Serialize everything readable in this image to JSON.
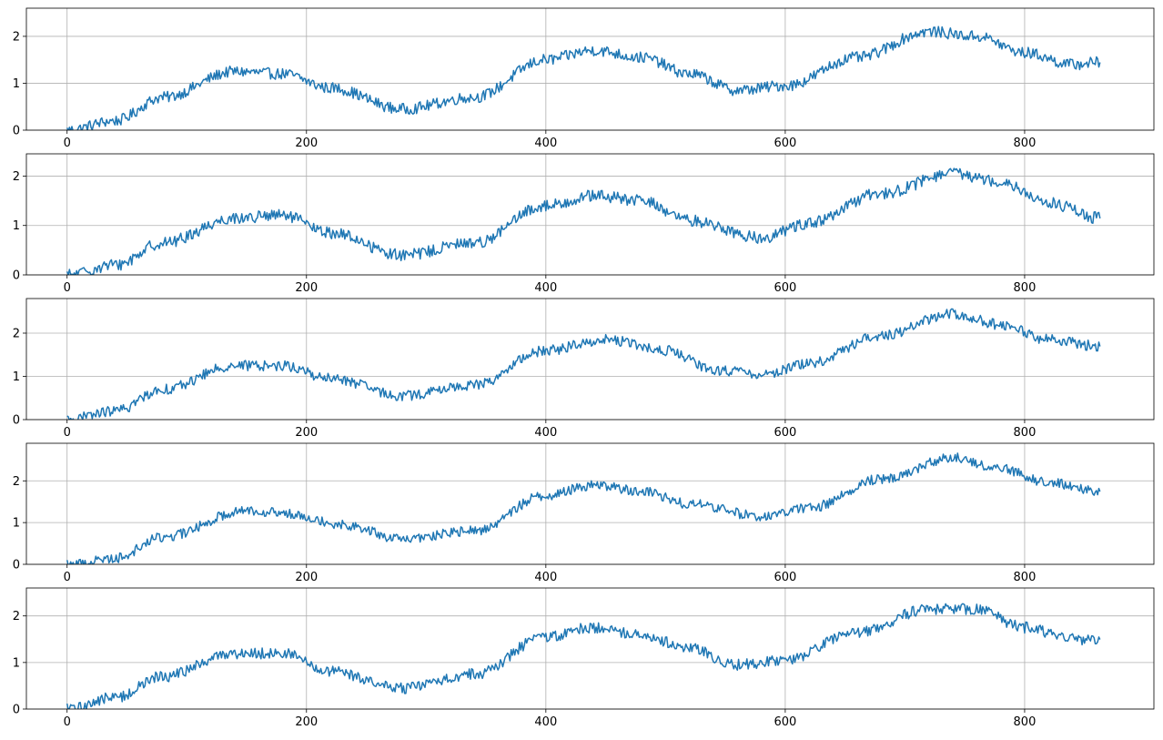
{
  "chart_data": [
    {
      "type": "line",
      "xlim": [
        -34,
        908
      ],
      "ylim": [
        0,
        2.6
      ],
      "xticks": [
        0,
        200,
        400,
        600,
        800
      ],
      "xtick_labels": [
        "0",
        "200",
        "400",
        "600",
        "800"
      ],
      "yticks": [
        0,
        1,
        2
      ],
      "ytick_labels": [
        "0",
        "1",
        "2"
      ],
      "grid": true,
      "line_color": "#1f77b4",
      "x_range": [
        0,
        863
      ],
      "trend_x": [
        0,
        40,
        80,
        140,
        180,
        220,
        280,
        340,
        400,
        440,
        480,
        520,
        560,
        600,
        660,
        720,
        760,
        800,
        840,
        863
      ],
      "trend_y": [
        0.0,
        0.2,
        0.7,
        1.25,
        1.2,
        0.9,
        0.45,
        0.7,
        1.5,
        1.7,
        1.55,
        1.2,
        0.85,
        0.95,
        1.55,
        2.1,
        2.0,
        1.65,
        1.4,
        1.45
      ],
      "noise_amplitude": 0.12
    },
    {
      "type": "line",
      "xlim": [
        -34,
        908
      ],
      "ylim": [
        0,
        2.45
      ],
      "xticks": [
        0,
        200,
        400,
        600,
        800
      ],
      "xtick_labels": [
        "0",
        "200",
        "400",
        "600",
        "800"
      ],
      "yticks": [
        0,
        1,
        2
      ],
      "ytick_labels": [
        "0",
        "1",
        "2"
      ],
      "grid": true,
      "line_color": "#1f77b4",
      "x_range": [
        0,
        863
      ],
      "trend_x": [
        0,
        40,
        80,
        140,
        180,
        220,
        280,
        340,
        400,
        440,
        480,
        520,
        580,
        620,
        680,
        740,
        780,
        820,
        863
      ],
      "trend_y": [
        0.0,
        0.2,
        0.65,
        1.15,
        1.2,
        0.85,
        0.4,
        0.65,
        1.4,
        1.6,
        1.5,
        1.1,
        0.75,
        1.05,
        1.65,
        2.05,
        1.9,
        1.45,
        1.15
      ],
      "noise_amplitude": 0.12
    },
    {
      "type": "line",
      "xlim": [
        -34,
        908
      ],
      "ylim": [
        0,
        2.8
      ],
      "xticks": [
        0,
        200,
        400,
        600,
        800
      ],
      "xtick_labels": [
        "0",
        "200",
        "400",
        "600",
        "800"
      ],
      "yticks": [
        0,
        1,
        2
      ],
      "ytick_labels": [
        "0",
        "1",
        "2"
      ],
      "grid": true,
      "line_color": "#1f77b4",
      "x_range": [
        0,
        863
      ],
      "trend_x": [
        0,
        40,
        80,
        140,
        180,
        220,
        280,
        340,
        400,
        450,
        500,
        540,
        580,
        620,
        680,
        740,
        780,
        820,
        863
      ],
      "trend_y": [
        0.0,
        0.2,
        0.7,
        1.25,
        1.25,
        0.95,
        0.55,
        0.8,
        1.6,
        1.85,
        1.6,
        1.15,
        1.05,
        1.3,
        1.95,
        2.45,
        2.2,
        1.85,
        1.7
      ],
      "noise_amplitude": 0.12
    },
    {
      "type": "line",
      "xlim": [
        -34,
        908
      ],
      "ylim": [
        0,
        2.9
      ],
      "xticks": [
        0,
        200,
        400,
        600,
        800
      ],
      "xtick_labels": [
        "0",
        "200",
        "400",
        "600",
        "800"
      ],
      "yticks": [
        0,
        1,
        2
      ],
      "ytick_labels": [
        "0",
        "1",
        "2"
      ],
      "grid": true,
      "line_color": "#1f77b4",
      "x_range": [
        0,
        863
      ],
      "trend_x": [
        0,
        40,
        80,
        150,
        190,
        230,
        280,
        340,
        400,
        440,
        480,
        520,
        580,
        620,
        680,
        740,
        780,
        820,
        863
      ],
      "trend_y": [
        0.0,
        0.15,
        0.65,
        1.3,
        1.2,
        0.95,
        0.6,
        0.8,
        1.65,
        1.9,
        1.75,
        1.45,
        1.15,
        1.35,
        2.05,
        2.55,
        2.3,
        1.95,
        1.75
      ],
      "noise_amplitude": 0.12
    },
    {
      "type": "line",
      "xlim": [
        -34,
        908
      ],
      "ylim": [
        0,
        2.6
      ],
      "xticks": [
        0,
        200,
        400,
        600,
        800
      ],
      "xtick_labels": [
        "0",
        "200",
        "400",
        "600",
        "800"
      ],
      "yticks": [
        0,
        1,
        2
      ],
      "ytick_labels": [
        "0",
        "1",
        "2"
      ],
      "grid": true,
      "line_color": "#1f77b4",
      "x_range": [
        0,
        863
      ],
      "trend_x": [
        0,
        40,
        80,
        140,
        180,
        220,
        280,
        340,
        400,
        440,
        480,
        520,
        560,
        600,
        660,
        720,
        760,
        800,
        840,
        863
      ],
      "trend_y": [
        0.0,
        0.25,
        0.7,
        1.2,
        1.2,
        0.8,
        0.45,
        0.75,
        1.55,
        1.75,
        1.6,
        1.3,
        0.95,
        1.05,
        1.65,
        2.15,
        2.15,
        1.75,
        1.5,
        1.5
      ],
      "noise_amplitude": 0.12
    }
  ]
}
